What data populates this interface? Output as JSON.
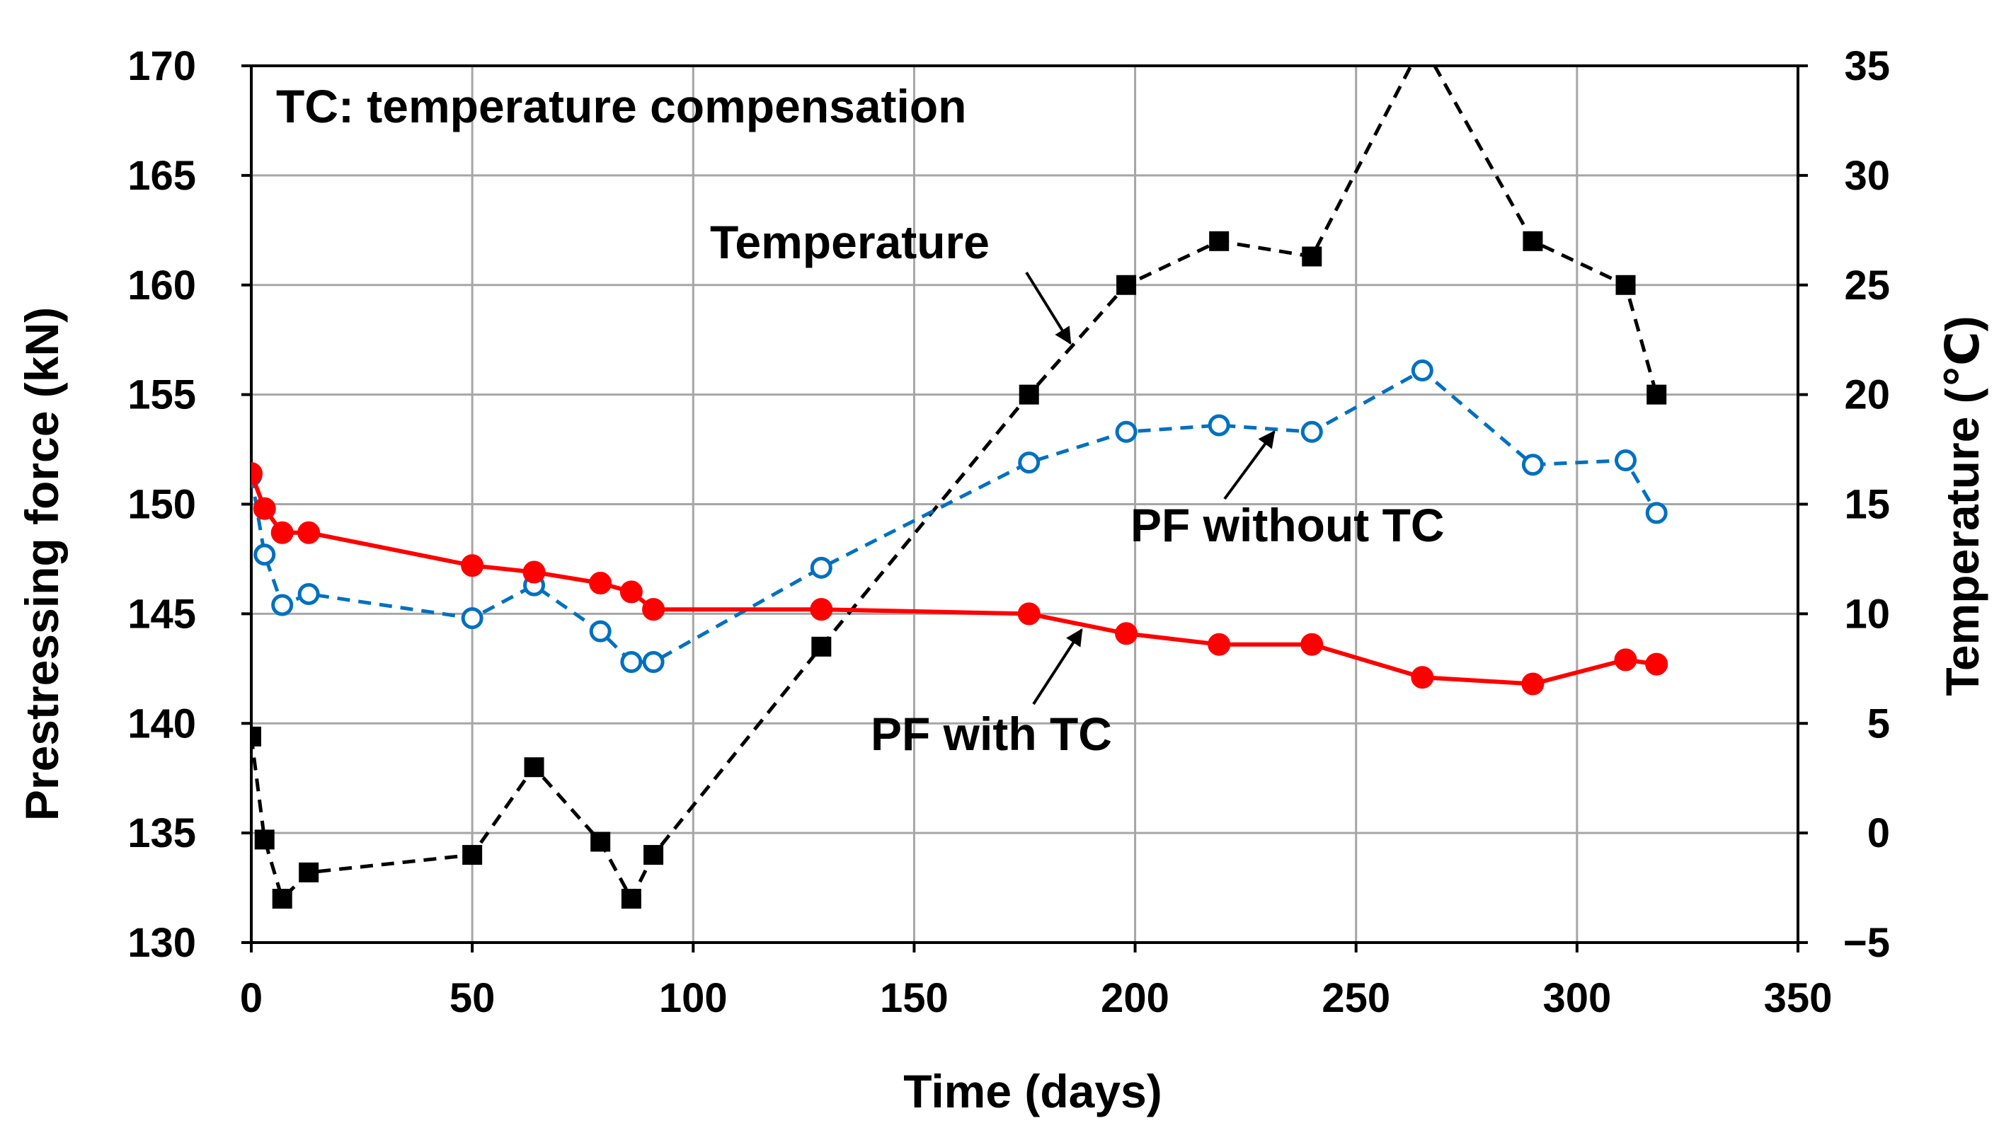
{
  "chart_data": {
    "type": "line",
    "xlabel": "Time (days)",
    "ylabel_left": "Prestressing force (kN)",
    "ylabel_right": "Temperature (℃)",
    "xlim": [
      0,
      350
    ],
    "ylim_left": [
      130,
      170
    ],
    "ylim_right": [
      -5,
      35
    ],
    "x_ticks": [
      0,
      50,
      100,
      150,
      200,
      250,
      300,
      350
    ],
    "y_ticks_left": [
      130,
      135,
      140,
      145,
      150,
      155,
      160,
      165,
      170
    ],
    "y_ticks_right": [
      "−5",
      "0",
      "5",
      "10",
      "15",
      "20",
      "25",
      "30",
      "35"
    ],
    "grid": true,
    "annotations": {
      "note": "TC: temperature compensation",
      "temperature": "Temperature",
      "pf_without_tc": "PF without TC",
      "pf_with_tc": "PF with TC"
    },
    "series": [
      {
        "key": "pf_with_tc",
        "axis": "left",
        "color": "#ff0000",
        "line": "solid",
        "marker": "filled-circle",
        "x": [
          0,
          3,
          7,
          13,
          50,
          64,
          79,
          86,
          91,
          129,
          176,
          198,
          219,
          240,
          265,
          290,
          311,
          318
        ],
        "y": [
          151.4,
          149.8,
          148.7,
          148.7,
          147.2,
          146.9,
          146.4,
          146.0,
          145.2,
          145.2,
          145.0,
          144.1,
          143.6,
          143.6,
          142.1,
          141.8,
          142.9,
          142.7
        ]
      },
      {
        "key": "pf_without_tc",
        "axis": "left",
        "color": "#0070c0",
        "line": "dashed",
        "marker": "open-circle",
        "x": [
          0,
          3,
          7,
          13,
          50,
          64,
          79,
          86,
          91,
          129,
          176,
          198,
          219,
          240,
          265,
          290,
          311,
          318
        ],
        "y": [
          151.3,
          147.7,
          145.4,
          145.9,
          144.8,
          146.3,
          144.2,
          142.8,
          142.8,
          147.1,
          151.9,
          153.3,
          153.6,
          153.3,
          156.1,
          151.8,
          152.0,
          149.6
        ]
      },
      {
        "key": "temperature",
        "axis": "right",
        "color": "#000000",
        "line": "dashed",
        "marker": "filled-square",
        "x": [
          0,
          3,
          7,
          13,
          50,
          64,
          79,
          86,
          91,
          129,
          176,
          198,
          219,
          240,
          265,
          290,
          311,
          318
        ],
        "y": [
          4.4,
          -0.3,
          -3.0,
          -1.8,
          -1.0,
          3.0,
          -0.4,
          -3.0,
          -1.0,
          8.5,
          20.0,
          25.0,
          27.0,
          26.3,
          36.0,
          27.0,
          25.0,
          20.0
        ]
      }
    ]
  }
}
